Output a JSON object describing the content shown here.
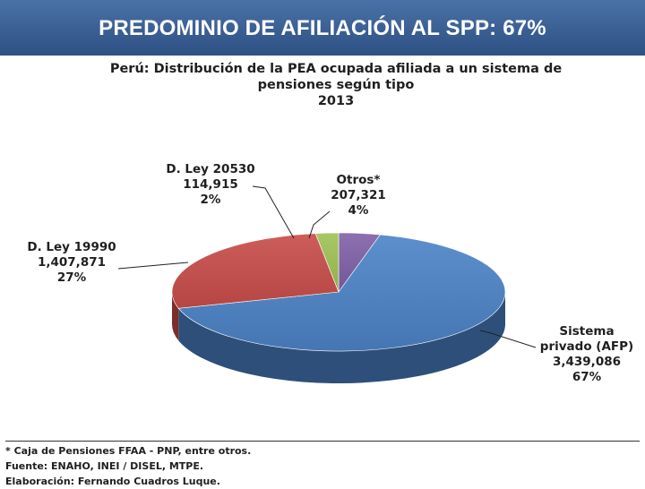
{
  "header": {
    "title": "PREDOMINIO DE AFILIACIÓN AL SPP: 67%"
  },
  "chart_data": {
    "type": "pie",
    "title_lines": [
      "Perú: Distribución  de la PEA ocupada afiliada a un sistema  de",
      "pensiones según tipo",
      "2013"
    ],
    "slices": [
      {
        "name": "Sistema privado (AFP)",
        "name_lines": [
          "Sistema",
          "privado (AFP)"
        ],
        "value": 3439086,
        "value_label": "3,439,086",
        "percent": 67,
        "percent_label": "67%",
        "color": "#4f81bd",
        "shadow": "#2e4f7a"
      },
      {
        "name": "D. Ley 19990",
        "name_lines": [
          "D. Ley 19990"
        ],
        "value": 1407871,
        "value_label": "1,407,871",
        "percent": 27,
        "percent_label": "27%",
        "color": "#c0504d",
        "shadow": "#7d2d2b"
      },
      {
        "name": "D. Ley 20530",
        "name_lines": [
          "D. Ley 20530"
        ],
        "value": 114915,
        "value_label": "114,915",
        "percent": 2,
        "percent_label": "2%",
        "color": "#9bbb59",
        "shadow": "#63792f"
      },
      {
        "name": "Otros*",
        "name_lines": [
          "Otros*"
        ],
        "value": 207321,
        "value_label": "207,321",
        "percent": 4,
        "percent_label": "4%",
        "color": "#8064a2",
        "shadow": "#4f3a68"
      }
    ]
  },
  "footnotes": {
    "note": "* Caja de Pensiones FFAA - PNP, entre otros.",
    "source": "Fuente: ENAHO, INEI / DISEL, MTPE.",
    "author": "Elaboración: Fernando Cuadros Luque."
  }
}
